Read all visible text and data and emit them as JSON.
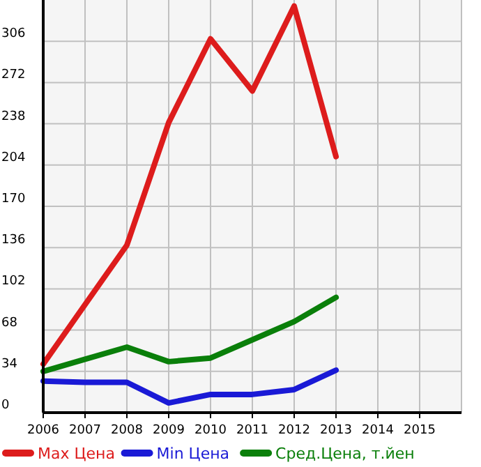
{
  "chart_data": {
    "type": "line",
    "x": [
      2006,
      2007,
      2008,
      2009,
      2010,
      2011,
      2012,
      2013
    ],
    "series": [
      {
        "name": "Max Цена",
        "color": "#dd1c1c",
        "values": [
          40,
          89,
          138,
          239,
          308,
          265,
          335,
          211
        ]
      },
      {
        "name": "Min Цена",
        "color": "#1a1ad6",
        "values": [
          26,
          25,
          25,
          8,
          15,
          15,
          19,
          35
        ]
      },
      {
        "name": "Сред.Цена, т.йен",
        "color": "#0a7f0a",
        "values": [
          34,
          44,
          54,
          42,
          45,
          60,
          75,
          95
        ]
      }
    ],
    "xlim": [
      2006,
      2016
    ],
    "xticks": [
      2006,
      2007,
      2008,
      2009,
      2010,
      2011,
      2012,
      2013,
      2014,
      2015
    ],
    "ylim": [
      0,
      340
    ],
    "yticks": [
      0,
      34,
      68,
      102,
      136,
      170,
      204,
      238,
      272,
      306
    ],
    "grid": true,
    "legend": "bottom",
    "marker": "none",
    "line_style": "solid"
  }
}
